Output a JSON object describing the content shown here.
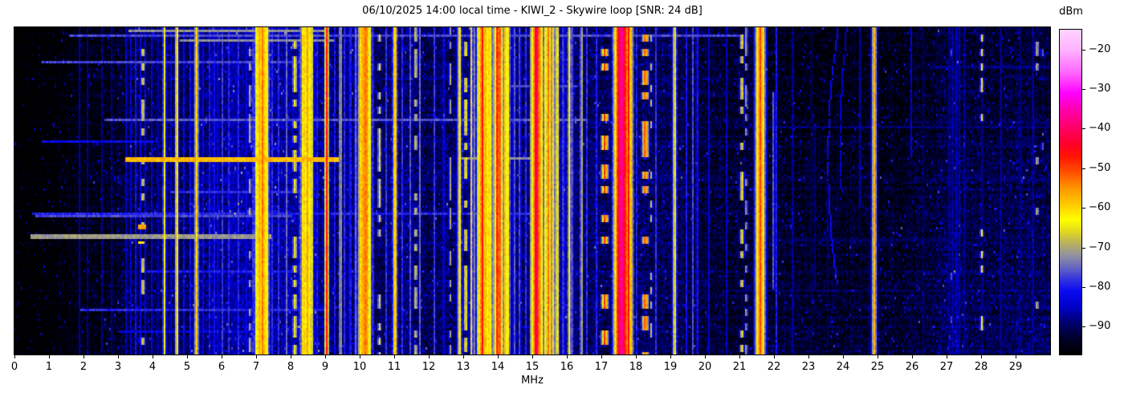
{
  "chart_data": {
    "type": "heatmap",
    "title": "06/10/2025 14:00 local time - KIWI_2 - Skywire loop [SNR: 24 dB]",
    "xlabel": "MHz",
    "x_range_mhz": [
      0,
      30
    ],
    "x_ticks": [
      0,
      1,
      2,
      3,
      4,
      5,
      6,
      7,
      8,
      9,
      10,
      11,
      12,
      13,
      14,
      15,
      16,
      17,
      18,
      19,
      20,
      21,
      22,
      23,
      24,
      25,
      26,
      27,
      28,
      29
    ],
    "grid": false,
    "colorbar": {
      "label": "dBm",
      "range_dbm": [
        -97,
        -15
      ],
      "ticks": [
        -20,
        -30,
        -40,
        -50,
        -60,
        -70,
        -80,
        -90
      ],
      "colormap_stops": [
        {
          "dbm": -97,
          "color": "#000000"
        },
        {
          "dbm": -93,
          "color": "#000028"
        },
        {
          "dbm": -89,
          "color": "#00006e"
        },
        {
          "dbm": -85,
          "color": "#0000c8"
        },
        {
          "dbm": -81,
          "color": "#0a0af0"
        },
        {
          "dbm": -78,
          "color": "#3333e0"
        },
        {
          "dbm": -75,
          "color": "#6666c0"
        },
        {
          "dbm": -72,
          "color": "#9090a0"
        },
        {
          "dbm": -69,
          "color": "#b8b060"
        },
        {
          "dbm": -66,
          "color": "#e0d820"
        },
        {
          "dbm": -63,
          "color": "#ffff00"
        },
        {
          "dbm": -59,
          "color": "#ffc800"
        },
        {
          "dbm": -55,
          "color": "#ff9600"
        },
        {
          "dbm": -51,
          "color": "#ff5000"
        },
        {
          "dbm": -47,
          "color": "#ff1400"
        },
        {
          "dbm": -44,
          "color": "#ff0028"
        },
        {
          "dbm": -40,
          "color": "#ff0064"
        },
        {
          "dbm": -36,
          "color": "#ff00a0"
        },
        {
          "dbm": -31,
          "color": "#ff00ff"
        },
        {
          "dbm": -26,
          "color": "#ff64ff"
        },
        {
          "dbm": -20,
          "color": "#ffb4ff"
        },
        {
          "dbm": -15,
          "color": "#ffd2ff"
        }
      ]
    },
    "noise_floor_dbm": [
      [
        0.0,
        -99
      ],
      [
        0.8,
        -98
      ],
      [
        1.5,
        -96.5
      ],
      [
        2.2,
        -95
      ],
      [
        3.0,
        -93
      ],
      [
        3.6,
        -91
      ],
      [
        4.2,
        -90.5
      ],
      [
        5.0,
        -89.5
      ],
      [
        5.6,
        -88
      ],
      [
        6.2,
        -87
      ],
      [
        7.0,
        -86.5
      ],
      [
        8.0,
        -86.5
      ],
      [
        8.8,
        -88
      ],
      [
        9.3,
        -89.5
      ],
      [
        10.6,
        -89.5
      ],
      [
        11.2,
        -89
      ],
      [
        12.0,
        -90.5
      ],
      [
        12.9,
        -89
      ],
      [
        14.6,
        -88.5
      ],
      [
        15.9,
        -88.5
      ],
      [
        16.5,
        -89.5
      ],
      [
        17.3,
        -90
      ],
      [
        18.6,
        -90.5
      ],
      [
        19.4,
        -91
      ],
      [
        20.2,
        -92.5
      ],
      [
        21.0,
        -92.5
      ],
      [
        22.3,
        -93.5
      ],
      [
        23.5,
        -94
      ],
      [
        25.5,
        -94
      ],
      [
        26.6,
        -92.5
      ],
      [
        27.3,
        -90.5
      ],
      [
        27.7,
        -91.5
      ],
      [
        28.4,
        -92
      ],
      [
        29.0,
        -91
      ],
      [
        30.0,
        -91
      ]
    ],
    "signals_format": [
      "mhz",
      "dbm",
      "half_width_mhz",
      "dash_duty",
      "y_start_frac",
      "y_end_frac"
    ],
    "signals": [
      [
        1.85,
        -86
      ],
      [
        2.1,
        -88
      ],
      [
        2.5,
        -87
      ],
      [
        2.8,
        -88
      ],
      [
        3.2,
        -84
      ],
      [
        3.35,
        -84
      ],
      [
        3.5,
        -80
      ],
      [
        3.62,
        -82
      ],
      [
        3.78,
        -82
      ],
      [
        3.95,
        -84
      ],
      [
        4.12,
        -83
      ],
      [
        4.5,
        -83
      ],
      [
        4.88,
        -82
      ],
      [
        5.08,
        -80
      ],
      [
        5.45,
        -82
      ],
      [
        5.62,
        -80
      ],
      [
        5.75,
        -78
      ],
      [
        5.88,
        -80
      ],
      [
        6.0,
        -78
      ],
      [
        6.18,
        -79
      ],
      [
        6.3,
        -82
      ],
      [
        6.45,
        -77
      ],
      [
        6.68,
        -80
      ],
      [
        6.9,
        -76
      ],
      [
        7.45,
        -78
      ],
      [
        7.62,
        -78
      ],
      [
        7.85,
        -74
      ],
      [
        8.22,
        -78
      ],
      [
        8.75,
        -80
      ],
      [
        8.97,
        -78
      ],
      [
        9.25,
        -80
      ],
      [
        9.55,
        -77
      ],
      [
        9.7,
        -76
      ],
      [
        9.85,
        -74
      ],
      [
        10.35,
        -75
      ],
      [
        10.75,
        -78
      ],
      [
        11.2,
        -78
      ],
      [
        11.45,
        -76
      ],
      [
        11.72,
        -75
      ],
      [
        12.15,
        -77
      ],
      [
        12.4,
        -80
      ],
      [
        13.3,
        -74
      ],
      [
        14.45,
        -74
      ],
      [
        14.62,
        -75
      ],
      [
        14.8,
        -78
      ],
      [
        15.88,
        -74
      ],
      [
        16.15,
        -76
      ],
      [
        16.55,
        -78
      ],
      [
        16.85,
        -78
      ],
      [
        17.3,
        -78
      ],
      [
        18.0,
        -80
      ],
      [
        18.55,
        -78
      ],
      [
        19.45,
        -80
      ],
      [
        19.75,
        -78
      ],
      [
        20.1,
        -84
      ],
      [
        20.6,
        -85
      ],
      [
        22.05,
        -80
      ],
      [
        22.5,
        -86
      ],
      [
        23.05,
        -87
      ],
      [
        26.3,
        -87
      ],
      [
        28.55,
        -86
      ],
      [
        29.1,
        -86
      ],
      [
        29.5,
        -85
      ],
      [
        28.02,
        -84
      ],
      [
        24.48,
        -83,
        0.03,
        null,
        0,
        0.55
      ],
      [
        25.95,
        -84,
        0.025,
        null,
        0,
        0.4
      ],
      [
        23.15,
        -86,
        0.025,
        null,
        0.3,
        0.8
      ],
      [
        23.55,
        -86,
        0.025,
        null,
        0.45,
        1
      ],
      [
        23.65,
        -87,
        0.02,
        null,
        0.5,
        1
      ],
      [
        3.7,
        -66,
        0.05,
        0.25
      ],
      [
        4.32,
        -63,
        0.03
      ],
      [
        4.68,
        -56,
        0.025
      ],
      [
        5.25,
        -60,
        0.04
      ],
      [
        6.8,
        -68,
        0.04,
        0.3
      ],
      [
        7.0,
        -62,
        0.05
      ],
      [
        7.08,
        -57,
        0.06
      ],
      [
        7.16,
        -53,
        0.06
      ],
      [
        7.22,
        -58,
        0.05
      ],
      [
        7.3,
        -63,
        0.04
      ],
      [
        8.1,
        -64,
        0.05,
        0.55
      ],
      [
        8.35,
        -58,
        0.05
      ],
      [
        8.47,
        -56,
        0.06
      ],
      [
        8.58,
        -62,
        0.04
      ],
      [
        9.02,
        -47,
        0.025
      ],
      [
        9.42,
        -66,
        0.03
      ],
      [
        10.0,
        -60,
        0.05
      ],
      [
        10.08,
        -55,
        0.07
      ],
      [
        10.16,
        -52,
        0.06
      ],
      [
        10.26,
        -60,
        0.04
      ],
      [
        10.55,
        -65,
        0.04,
        0.5
      ],
      [
        11.0,
        -49,
        0.025
      ],
      [
        11.6,
        -66,
        0.04,
        0.4
      ],
      [
        12.6,
        -70,
        0.035,
        0.4
      ],
      [
        12.87,
        -62,
        0.04
      ],
      [
        13.05,
        -63,
        0.04,
        0.6
      ],
      [
        13.22,
        -64,
        0.03
      ],
      [
        13.42,
        -62,
        0.04
      ],
      [
        13.53,
        -46,
        0.05
      ],
      [
        13.62,
        -58,
        0.05
      ],
      [
        13.72,
        -60,
        0.08
      ],
      [
        13.97,
        -47,
        0.05
      ],
      [
        14.05,
        -52,
        0.04
      ],
      [
        14.2,
        -58,
        0.05
      ],
      [
        14.28,
        -62,
        0.04
      ],
      [
        15.02,
        -60,
        0.04
      ],
      [
        15.1,
        -40,
        0.06
      ],
      [
        15.22,
        -56,
        0.05
      ],
      [
        15.35,
        -62,
        0.04
      ],
      [
        15.45,
        -53,
        0.05
      ],
      [
        15.58,
        -60,
        0.04
      ],
      [
        15.7,
        -62,
        0.04
      ],
      [
        16.05,
        -63,
        0.04
      ],
      [
        16.4,
        -66,
        0.03
      ],
      [
        17.08,
        -48,
        0.04,
        0.35
      ],
      [
        17.48,
        -42,
        0.05
      ],
      [
        17.56,
        -36,
        0.07
      ],
      [
        17.64,
        -42,
        0.05
      ],
      [
        17.76,
        -46,
        0.05
      ],
      [
        18.25,
        -50,
        0.04,
        0.3
      ],
      [
        18.42,
        -68,
        0.035,
        0.3
      ],
      [
        19.1,
        -63,
        0.04
      ],
      [
        19.62,
        -76,
        0.03
      ],
      [
        21.05,
        -64,
        0.04,
        0.5
      ],
      [
        21.18,
        -68,
        0.03,
        0.4
      ],
      [
        21.52,
        -58,
        0.05
      ],
      [
        21.58,
        -50,
        0.06
      ],
      [
        21.66,
        -60,
        0.04
      ],
      [
        21.97,
        -70,
        0.02,
        null,
        0.2,
        0.8
      ],
      [
        24.88,
        -57,
        0.035
      ],
      [
        27.05,
        -87,
        0.06
      ],
      [
        27.15,
        -86,
        0.05
      ],
      [
        27.25,
        -85,
        0.04
      ],
      [
        27.35,
        -86,
        0.04
      ],
      [
        27.5,
        -87,
        0.05
      ],
      [
        27.1,
        -74,
        0.03,
        0.08
      ],
      [
        27.25,
        -72,
        0.03,
        0.1
      ],
      [
        28.0,
        -62,
        0.03,
        0.18
      ],
      [
        29.6,
        -68,
        0.04,
        0.1
      ],
      [
        29.75,
        -72,
        0.03,
        0.08
      ]
    ],
    "wideband_events_format": [
      "y_frac",
      "mhz_start",
      "mhz_end",
      "dbm",
      "rows"
    ],
    "wideband_events": [
      [
        0.005,
        3.3,
        9.0,
        -72,
        1
      ],
      [
        0.022,
        1.6,
        21.0,
        -77,
        1
      ],
      [
        0.035,
        4.8,
        9.2,
        -72,
        1
      ],
      [
        0.1,
        0.8,
        8.6,
        -77,
        1
      ],
      [
        0.115,
        26.5,
        30.0,
        -88,
        1
      ],
      [
        0.175,
        13.0,
        16.3,
        -77,
        1
      ],
      [
        0.276,
        2.6,
        16.5,
        -76,
        1
      ],
      [
        0.3,
        21.0,
        30.0,
        -89,
        1
      ],
      [
        0.345,
        0.8,
        4.0,
        -82,
        1
      ],
      [
        0.395,
        3.2,
        9.35,
        -58,
        2
      ],
      [
        0.4,
        12.9,
        15.6,
        -72,
        1
      ],
      [
        0.5,
        4.5,
        8.2,
        -79,
        1
      ],
      [
        0.565,
        0.5,
        15.5,
        -79,
        1
      ],
      [
        0.575,
        0.6,
        8.0,
        -77,
        1
      ],
      [
        0.6,
        3.6,
        3.78,
        -56,
        2
      ],
      [
        0.635,
        0.45,
        7.4,
        -71,
        2
      ],
      [
        0.648,
        22.0,
        27.0,
        -90,
        1
      ],
      [
        0.655,
        3.58,
        3.72,
        -62,
        1
      ],
      [
        0.74,
        3.8,
        8.3,
        -80,
        1
      ],
      [
        0.8,
        20.5,
        26.0,
        -90,
        1
      ],
      [
        0.86,
        1.9,
        9.0,
        -79,
        1
      ],
      [
        0.93,
        3.0,
        7.0,
        -83,
        1
      ]
    ],
    "chirp_arcs": [
      {
        "mhz_center": 23.55,
        "curvature": 1.75,
        "t_vertex": 0.4,
        "t_start": 0,
        "t_end": 0.78,
        "dbm": -82
      },
      {
        "mhz_center": 23.9,
        "curvature": 1.5,
        "t_vertex": 0.35,
        "t_start": 0,
        "t_end": 0.5,
        "dbm": -85
      }
    ]
  }
}
